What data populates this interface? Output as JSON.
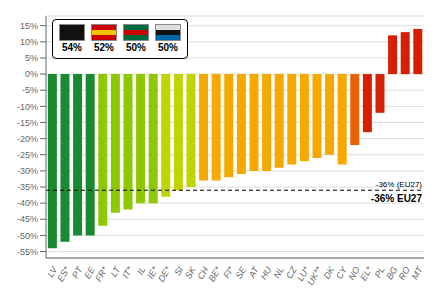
{
  "chart_data": {
    "type": "bar",
    "categories": [
      "LV",
      "ES*",
      "PT",
      "EE",
      "FR*",
      "LT",
      "IT*",
      "IL",
      "IE*",
      "DE*",
      "SI",
      "SK",
      "CH",
      "BE*",
      "FI*",
      "SE",
      "AT",
      "HU",
      "NL",
      "CZ",
      "LU*",
      "UK**",
      "DK",
      "CY",
      "NO",
      "EL*",
      "PL",
      "BG",
      "RO",
      "MT"
    ],
    "values": [
      -54,
      -52,
      -50,
      -50,
      -47,
      -43,
      -42,
      -40,
      -40,
      -38,
      -36,
      -35,
      -33,
      -33,
      -32,
      -31,
      -30,
      -30,
      -29,
      -28,
      -27,
      -26,
      -25,
      -28,
      -22,
      -18,
      -12,
      12,
      13,
      14
    ],
    "colors": [
      "#1a8a30",
      "#1a8a30",
      "#1a8a30",
      "#1a8a30",
      "#8dc800",
      "#8dc800",
      "#8dc800",
      "#8dc800",
      "#8dc800",
      "#c2d400",
      "#c2d400",
      "#c2d400",
      "#f5a800",
      "#f5a800",
      "#f5a800",
      "#f5a800",
      "#f5a800",
      "#f5a800",
      "#f5a800",
      "#f5a800",
      "#f5a800",
      "#f5a800",
      "#f5a800",
      "#f5a800",
      "#e86000",
      "#d42000",
      "#d42000",
      "#d42000",
      "#d42000",
      "#d42000"
    ],
    "ylim": [
      -57,
      18
    ],
    "yticks": [
      {
        "value": 15,
        "label": "15%"
      },
      {
        "value": 10,
        "label": "10%"
      },
      {
        "value": 5,
        "label": "5%"
      },
      {
        "value": 0,
        "label": "0%"
      },
      {
        "value": -5,
        "label": "-5%"
      },
      {
        "value": -10,
        "label": "-10%"
      },
      {
        "value": -15,
        "label": "-15%"
      },
      {
        "value": -20,
        "label": "-20%"
      },
      {
        "value": -25,
        "label": "-25%"
      },
      {
        "value": -30,
        "label": "-30%"
      },
      {
        "value": -35,
        "label": "-35%"
      },
      {
        "value": -40,
        "label": "-40%"
      },
      {
        "value": -45,
        "label": "-45%"
      },
      {
        "value": -50,
        "label": "-50%"
      },
      {
        "value": -55,
        "label": "-55%"
      }
    ],
    "grid": true,
    "reference_line": {
      "value": -36,
      "labels": [
        "-36% (EU27)",
        "-36% EU27"
      ]
    },
    "flags": [
      {
        "label": "54%",
        "colors": [
          "#111111"
        ]
      },
      {
        "label": "52%",
        "colors": [
          "#cc0000",
          "#f5c200",
          "#cc0000"
        ]
      },
      {
        "label": "50%",
        "colors": [
          "#006b3c",
          "#cc0000",
          "#006b3c"
        ]
      },
      {
        "label": "50%",
        "colors": [
          "#dddddd",
          "#111111",
          "#0066aa"
        ]
      }
    ]
  }
}
